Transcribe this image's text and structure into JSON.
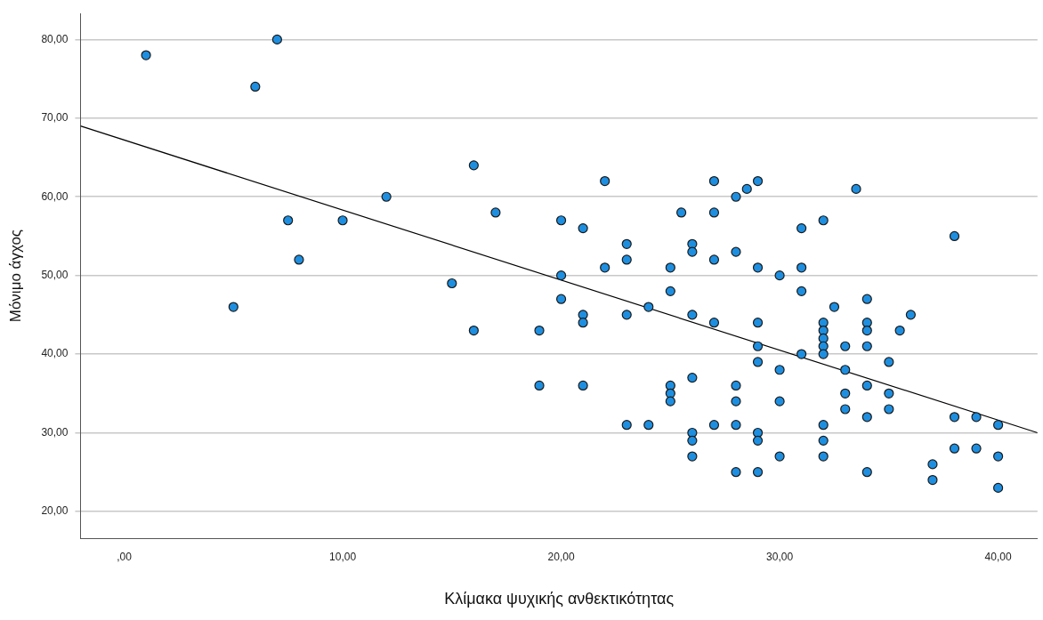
{
  "chart_data": {
    "type": "scatter",
    "xlabel": "Κλίμακα ψυχικής ανθεκτικότητας",
    "ylabel": "Μόνιμο άγχος",
    "xlim": [
      -2,
      41.8
    ],
    "ylim": [
      16.6,
      83.3
    ],
    "xticks": [
      {
        "value": 0,
        "label": ",00"
      },
      {
        "value": 10,
        "label": "10,00"
      },
      {
        "value": 20,
        "label": "20,00"
      },
      {
        "value": 30,
        "label": "30,00"
      },
      {
        "value": 40,
        "label": "40,00"
      }
    ],
    "yticks": [
      {
        "value": 20,
        "label": "20,00"
      },
      {
        "value": 30,
        "label": "30,00"
      },
      {
        "value": 40,
        "label": "40,00"
      },
      {
        "value": 50,
        "label": "50,00"
      },
      {
        "value": 60,
        "label": "60,00"
      },
      {
        "value": 70,
        "label": "70,00"
      },
      {
        "value": 80,
        "label": "80,00"
      }
    ],
    "grid": "y",
    "legend": false,
    "marker": "circle",
    "series": [
      {
        "type": "scatter",
        "color": "#1e8fe0",
        "x": [
          1,
          7,
          6,
          16,
          12,
          7.5,
          10,
          17,
          8,
          15,
          5,
          16,
          22,
          27,
          29,
          28,
          28.5,
          25.5,
          27,
          20,
          21,
          23,
          26,
          26,
          23,
          27,
          28,
          22,
          25,
          29,
          30,
          20,
          20,
          21,
          21,
          23,
          24,
          25,
          26,
          27,
          29,
          29,
          29,
          30,
          19,
          19,
          21,
          25,
          25,
          25,
          26,
          28,
          28,
          30,
          23,
          24,
          26,
          26,
          27,
          28,
          29,
          29,
          26,
          30,
          28,
          29,
          33.5,
          31,
          32,
          38,
          31,
          31,
          32.5,
          34,
          36,
          32,
          32,
          32,
          32,
          32,
          34,
          34,
          34,
          35.5,
          33,
          31,
          33,
          35,
          34,
          33,
          35,
          33,
          35,
          34,
          32,
          32,
          32,
          34,
          38,
          39,
          40,
          38,
          39,
          40,
          37,
          37,
          40
        ],
        "values": [
          78,
          80,
          74,
          64,
          60,
          57,
          57,
          58,
          52,
          49,
          46,
          43,
          62,
          62,
          62,
          60,
          61,
          58,
          58,
          57,
          56,
          54,
          54,
          53,
          52,
          52,
          53,
          51,
          51,
          51,
          50,
          50,
          47,
          45,
          44,
          45,
          46,
          48,
          45,
          44,
          44,
          41,
          39,
          38,
          43,
          36,
          36,
          36,
          35,
          34,
          37,
          36,
          34,
          34,
          31,
          31,
          30,
          29,
          31,
          31,
          30,
          29,
          27,
          27,
          25,
          25,
          61,
          56,
          57,
          55,
          51,
          48,
          46,
          47,
          45,
          44,
          43,
          42,
          41,
          40,
          44,
          43,
          41,
          43,
          41,
          40,
          38,
          39,
          36,
          35,
          35,
          33,
          33,
          32,
          31,
          29,
          27,
          25,
          32,
          32,
          31,
          28,
          28,
          27,
          26,
          24,
          23
        ]
      },
      {
        "type": "line",
        "color": "#000000",
        "marker": "none",
        "x": [
          -2,
          41.8
        ],
        "values": [
          69.0,
          30.0
        ]
      }
    ]
  }
}
